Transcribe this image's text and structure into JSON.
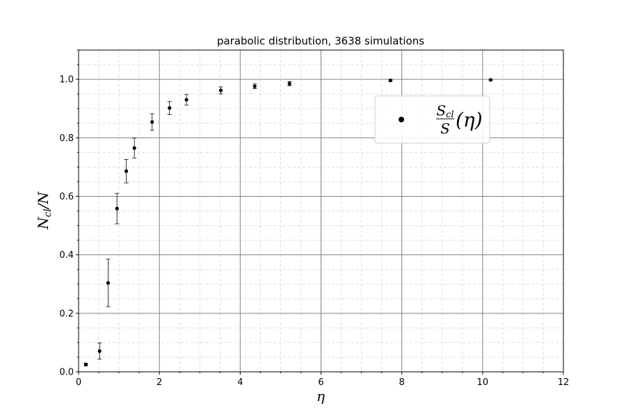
{
  "chart_data": {
    "type": "scatter",
    "title": "parabolic distribution, 3638 simulations",
    "xlabel": {
      "main": "η",
      "sub": ""
    },
    "ylabel": {
      "main": "N",
      "sub": "cl",
      "suffix": "/N"
    },
    "xlim": [
      0,
      12
    ],
    "ylim": [
      0,
      1.1
    ],
    "xticks": [
      0,
      2,
      4,
      6,
      8,
      10,
      12
    ],
    "xtick_labels": [
      "0",
      "2",
      "4",
      "6",
      "8",
      "10",
      "12"
    ],
    "yticks": [
      0.0,
      0.2,
      0.4,
      0.6,
      0.8,
      1.0
    ],
    "ytick_labels": [
      "0.0",
      "0.2",
      "0.4",
      "0.6",
      "0.8",
      "1.0"
    ],
    "x_minor_step": 0.5,
    "y_minor_step": 0.05,
    "grid": {
      "major": true,
      "minor": true
    },
    "legend": {
      "placement": "upper-right",
      "entry": {
        "num": "S",
        "num_sub": "cl",
        "den": "S",
        "arg": "(η)"
      }
    },
    "marker_color": "#000000",
    "grid_major_color": "#808080",
    "grid_minor_color": "#dddddd",
    "series": [
      {
        "x": [
          0.18,
          0.52,
          0.73,
          0.95,
          1.18,
          1.38,
          1.82,
          2.25,
          2.67,
          3.52,
          4.36,
          5.22,
          7.72,
          10.2
        ],
        "y": [
          0.025,
          0.071,
          0.304,
          0.558,
          0.686,
          0.765,
          0.854,
          0.902,
          0.93,
          0.962,
          0.976,
          0.985,
          0.996,
          0.998
        ],
        "yerr": [
          0.005,
          0.028,
          0.081,
          0.052,
          0.04,
          0.034,
          0.028,
          0.022,
          0.018,
          0.012,
          0.008,
          0.007,
          0.003,
          0.002
        ]
      }
    ]
  }
}
